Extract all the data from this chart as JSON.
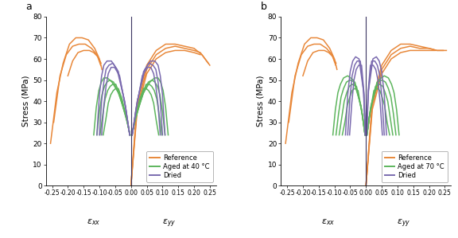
{
  "panel_a": {
    "title": "a",
    "legend_label_aged": "Aged at 40 °C",
    "colors": {
      "orange": "#E8883A",
      "green": "#5DB55D",
      "purple": "#7B6BAF"
    },
    "ref_curves_left": [
      {
        "x": [
          -0.255,
          -0.235,
          -0.215,
          -0.195,
          -0.175,
          -0.155,
          -0.135,
          -0.115,
          -0.1,
          -0.092
        ],
        "y": [
          20,
          44,
          58,
          67,
          70,
          70,
          69,
          65,
          60,
          55
        ]
      },
      {
        "x": [
          -0.245,
          -0.225,
          -0.205,
          -0.185,
          -0.165,
          -0.145,
          -0.125,
          -0.108,
          -0.096
        ],
        "y": [
          30,
          52,
          62,
          66,
          67,
          67,
          65,
          62,
          57
        ]
      },
      {
        "x": [
          -0.2,
          -0.185,
          -0.168,
          -0.15,
          -0.132,
          -0.118,
          -0.105,
          -0.095
        ],
        "y": [
          52,
          59,
          63,
          64,
          64,
          63,
          61,
          58
        ]
      }
    ],
    "ref_curves_right": [
      {
        "x": [
          0.0,
          0.02,
          0.05,
          0.08,
          0.11,
          0.14,
          0.17,
          0.2,
          0.225,
          0.25
        ],
        "y": [
          0,
          40,
          57,
          64,
          67,
          67,
          66,
          65,
          62,
          57
        ]
      },
      {
        "x": [
          0.0,
          0.02,
          0.05,
          0.08,
          0.11,
          0.14,
          0.17,
          0.2,
          0.22,
          0.245
        ],
        "y": [
          0,
          38,
          55,
          62,
          65,
          66,
          65,
          64,
          63,
          58
        ]
      },
      {
        "x": [
          0.0,
          0.02,
          0.05,
          0.08,
          0.11,
          0.14,
          0.17,
          0.2,
          0.22
        ],
        "y": [
          0,
          36,
          53,
          60,
          63,
          64,
          64,
          63,
          62
        ]
      }
    ],
    "aged_curves_left": [
      {
        "x": [
          -0.118,
          -0.11,
          -0.102,
          -0.094,
          -0.086,
          -0.075,
          -0.06,
          -0.04,
          -0.015,
          -0.003
        ],
        "y": [
          24,
          37,
          45,
          49,
          51,
          51,
          49,
          44,
          33,
          24
        ]
      },
      {
        "x": [
          -0.108,
          -0.1,
          -0.092,
          -0.084,
          -0.076,
          -0.067,
          -0.055,
          -0.037,
          -0.013,
          -0.003
        ],
        "y": [
          24,
          35,
          43,
          47,
          49,
          50,
          49,
          43,
          31,
          24
        ]
      },
      {
        "x": [
          -0.098,
          -0.09,
          -0.082,
          -0.074,
          -0.066,
          -0.058,
          -0.048,
          -0.033,
          -0.012,
          -0.003
        ],
        "y": [
          24,
          33,
          41,
          45,
          47,
          48,
          48,
          42,
          30,
          24
        ]
      },
      {
        "x": [
          -0.088,
          -0.08,
          -0.072,
          -0.064,
          -0.056,
          -0.048,
          -0.04,
          -0.028,
          -0.01,
          -0.003
        ],
        "y": [
          24,
          31,
          39,
          43,
          45,
          46,
          46,
          41,
          29,
          24
        ]
      }
    ],
    "aged_curves_right": [
      {
        "x": [
          0.003,
          0.015,
          0.04,
          0.06,
          0.075,
          0.086,
          0.094,
          0.102,
          0.11,
          0.118
        ],
        "y": [
          24,
          33,
          44,
          49,
          51,
          51,
          49,
          45,
          37,
          24
        ]
      },
      {
        "x": [
          0.003,
          0.013,
          0.037,
          0.055,
          0.067,
          0.076,
          0.084,
          0.092,
          0.1,
          0.108
        ],
        "y": [
          24,
          31,
          43,
          49,
          50,
          49,
          47,
          43,
          35,
          24
        ]
      },
      {
        "x": [
          0.003,
          0.012,
          0.033,
          0.048,
          0.058,
          0.066,
          0.074,
          0.082,
          0.09,
          0.098
        ],
        "y": [
          24,
          30,
          42,
          48,
          48,
          47,
          45,
          41,
          33,
          24
        ]
      },
      {
        "x": [
          0.003,
          0.01,
          0.028,
          0.04,
          0.048,
          0.056,
          0.064,
          0.072,
          0.08,
          0.088
        ],
        "y": [
          24,
          29,
          41,
          46,
          46,
          45,
          43,
          39,
          31,
          24
        ]
      }
    ],
    "dried_curves_left": [
      {
        "x": [
          -0.108,
          -0.1,
          -0.093,
          -0.086,
          -0.076,
          -0.062,
          -0.044,
          -0.02,
          -0.004
        ],
        "y": [
          24,
          43,
          52,
          57,
          59,
          59,
          55,
          40,
          24
        ]
      },
      {
        "x": [
          -0.1,
          -0.093,
          -0.086,
          -0.079,
          -0.07,
          -0.057,
          -0.04,
          -0.018,
          -0.004
        ],
        "y": [
          24,
          40,
          49,
          55,
          57,
          58,
          54,
          38,
          24
        ]
      },
      {
        "x": [
          -0.093,
          -0.086,
          -0.079,
          -0.072,
          -0.063,
          -0.052,
          -0.036,
          -0.016,
          -0.004
        ],
        "y": [
          24,
          38,
          47,
          53,
          56,
          56,
          52,
          36,
          24
        ]
      }
    ],
    "dried_curves_right": [
      {
        "x": [
          0.004,
          0.02,
          0.044,
          0.062,
          0.076,
          0.086,
          0.093,
          0.1,
          0.108
        ],
        "y": [
          24,
          40,
          55,
          59,
          59,
          57,
          52,
          43,
          24
        ]
      },
      {
        "x": [
          0.004,
          0.018,
          0.04,
          0.057,
          0.07,
          0.079,
          0.086,
          0.093,
          0.1
        ],
        "y": [
          24,
          38,
          54,
          58,
          57,
          55,
          49,
          40,
          24
        ]
      },
      {
        "x": [
          0.004,
          0.016,
          0.036,
          0.052,
          0.063,
          0.072,
          0.079,
          0.086,
          0.093
        ],
        "y": [
          24,
          36,
          52,
          56,
          56,
          53,
          47,
          38,
          24
        ]
      }
    ]
  },
  "panel_b": {
    "title": "b",
    "legend_label_aged": "Aged at 70 °C",
    "colors": {
      "orange": "#E8883A",
      "green": "#5DB55D",
      "purple": "#7B6BAF"
    },
    "ref_curves_left": [
      {
        "x": [
          -0.255,
          -0.235,
          -0.215,
          -0.195,
          -0.175,
          -0.155,
          -0.135,
          -0.115,
          -0.1,
          -0.092
        ],
        "y": [
          20,
          44,
          58,
          67,
          70,
          70,
          69,
          65,
          60,
          55
        ]
      },
      {
        "x": [
          -0.245,
          -0.225,
          -0.205,
          -0.185,
          -0.165,
          -0.145,
          -0.125,
          -0.108,
          -0.096
        ],
        "y": [
          30,
          52,
          62,
          66,
          67,
          67,
          65,
          62,
          57
        ]
      },
      {
        "x": [
          -0.2,
          -0.185,
          -0.168,
          -0.15,
          -0.132,
          -0.118,
          -0.105,
          -0.095
        ],
        "y": [
          52,
          59,
          63,
          64,
          64,
          63,
          61,
          58
        ]
      }
    ],
    "ref_curves_right": [
      {
        "x": [
          0.0,
          0.02,
          0.05,
          0.08,
          0.11,
          0.14,
          0.17,
          0.2,
          0.225,
          0.255
        ],
        "y": [
          0,
          40,
          57,
          64,
          67,
          67,
          66,
          65,
          64,
          64
        ]
      },
      {
        "x": [
          0.0,
          0.02,
          0.05,
          0.08,
          0.11,
          0.14,
          0.17,
          0.2,
          0.225,
          0.245
        ],
        "y": [
          0,
          38,
          55,
          62,
          65,
          66,
          65,
          65,
          64,
          64
        ]
      },
      {
        "x": [
          0.0,
          0.02,
          0.05,
          0.08,
          0.11,
          0.14,
          0.17,
          0.2,
          0.22
        ],
        "y": [
          0,
          36,
          53,
          60,
          63,
          64,
          64,
          64,
          64
        ]
      }
    ],
    "aged_curves_left": [
      {
        "x": [
          -0.105,
          -0.097,
          -0.089,
          -0.081,
          -0.071,
          -0.058,
          -0.04,
          -0.016,
          -0.003
        ],
        "y": [
          24,
          36,
          44,
          48,
          51,
          52,
          50,
          38,
          24
        ]
      },
      {
        "x": [
          -0.095,
          -0.087,
          -0.079,
          -0.071,
          -0.062,
          -0.051,
          -0.035,
          -0.014,
          -0.003
        ],
        "y": [
          24,
          34,
          42,
          46,
          49,
          50,
          49,
          36,
          24
        ]
      },
      {
        "x": [
          -0.085,
          -0.077,
          -0.069,
          -0.061,
          -0.053,
          -0.044,
          -0.03,
          -0.012,
          -0.003
        ],
        "y": [
          24,
          32,
          40,
          44,
          47,
          48,
          47,
          34,
          24
        ]
      },
      {
        "x": [
          -0.075,
          -0.067,
          -0.059,
          -0.051,
          -0.044,
          -0.036,
          -0.025,
          -0.01,
          -0.003
        ],
        "y": [
          24,
          30,
          38,
          42,
          45,
          46,
          45,
          32,
          24
        ]
      }
    ],
    "aged_curves_right": [
      {
        "x": [
          0.003,
          0.016,
          0.04,
          0.058,
          0.071,
          0.081,
          0.089,
          0.097,
          0.105
        ],
        "y": [
          24,
          38,
          50,
          52,
          51,
          48,
          44,
          36,
          24
        ]
      },
      {
        "x": [
          0.003,
          0.014,
          0.035,
          0.051,
          0.062,
          0.071,
          0.079,
          0.087,
          0.095
        ],
        "y": [
          24,
          36,
          49,
          50,
          49,
          46,
          42,
          34,
          24
        ]
      },
      {
        "x": [
          0.003,
          0.012,
          0.03,
          0.044,
          0.053,
          0.061,
          0.069,
          0.077,
          0.085
        ],
        "y": [
          24,
          34,
          47,
          48,
          47,
          44,
          40,
          32,
          24
        ]
      },
      {
        "x": [
          0.003,
          0.01,
          0.025,
          0.036,
          0.044,
          0.051,
          0.059,
          0.067,
          0.075
        ],
        "y": [
          24,
          32,
          45,
          46,
          45,
          42,
          38,
          30,
          24
        ]
      }
    ],
    "dried_curves_left": [
      {
        "x": [
          -0.065,
          -0.058,
          -0.05,
          -0.042,
          -0.033,
          -0.022,
          -0.008,
          -0.002
        ],
        "y": [
          24,
          43,
          54,
          59,
          61,
          60,
          45,
          24
        ]
      },
      {
        "x": [
          -0.058,
          -0.051,
          -0.044,
          -0.036,
          -0.028,
          -0.018,
          -0.007,
          -0.002
        ],
        "y": [
          24,
          41,
          52,
          57,
          59,
          59,
          44,
          24
        ]
      },
      {
        "x": [
          -0.052,
          -0.045,
          -0.038,
          -0.031,
          -0.023,
          -0.014,
          -0.006,
          -0.002
        ],
        "y": [
          24,
          39,
          50,
          55,
          57,
          57,
          43,
          24
        ]
      }
    ],
    "dried_curves_right": [
      {
        "x": [
          0.002,
          0.008,
          0.022,
          0.033,
          0.042,
          0.05,
          0.058,
          0.065
        ],
        "y": [
          24,
          45,
          60,
          61,
          59,
          54,
          43,
          24
        ]
      },
      {
        "x": [
          0.002,
          0.007,
          0.018,
          0.028,
          0.036,
          0.044,
          0.051,
          0.058
        ],
        "y": [
          24,
          44,
          59,
          59,
          57,
          52,
          41,
          24
        ]
      },
      {
        "x": [
          0.002,
          0.006,
          0.014,
          0.023,
          0.031,
          0.038,
          0.045,
          0.052
        ],
        "y": [
          24,
          43,
          57,
          57,
          55,
          50,
          39,
          24
        ]
      }
    ]
  },
  "ylim": [
    0,
    80
  ],
  "xlim": [
    -0.27,
    0.27
  ],
  "xticks": [
    -0.25,
    -0.2,
    -0.15,
    -0.1,
    -0.05,
    0.0,
    0.05,
    0.1,
    0.15,
    0.2,
    0.25
  ],
  "xtick_labels": [
    "-0.25",
    "-0.20",
    "-0.15",
    "-0.10",
    "-0.05",
    "0.00",
    "0.05",
    "0.10",
    "0.15",
    "0.20",
    "0.25"
  ],
  "yticks": [
    0,
    10,
    20,
    30,
    40,
    50,
    60,
    70,
    80
  ],
  "xlabel_left": "ε_xx",
  "xlabel_right": "ε_yy",
  "ylabel": "Stress (MPa)"
}
